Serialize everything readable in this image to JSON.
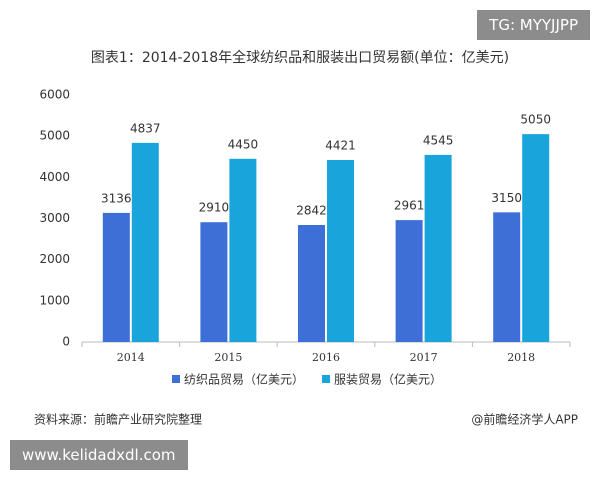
{
  "tag": "TG: MYYJJPP",
  "url": "www.kelidadxdl.com",
  "chart_data": {
    "type": "bar",
    "title": "图表1：2014-2018年全球纺织品和服装出口贸易额(单位：亿美元)",
    "categories": [
      "2014",
      "2015",
      "2016",
      "2017",
      "2018"
    ],
    "series": [
      {
        "name": "纺织品贸易（亿美元）",
        "color": "#3e6fd6",
        "values": [
          3136,
          2910,
          2842,
          2961,
          3150
        ]
      },
      {
        "name": "服装贸易（亿美元）",
        "color": "#1aa4dc",
        "values": [
          4837,
          4450,
          4421,
          4545,
          5050
        ]
      }
    ],
    "ylim": [
      0,
      6000
    ],
    "yticks": [
      0,
      1000,
      2000,
      3000,
      4000,
      5000,
      6000
    ],
    "grid": false,
    "legend": "bottom",
    "source": "资料来源：前瞻产业研究院整理",
    "credit": "@前瞻经济学人APP"
  }
}
